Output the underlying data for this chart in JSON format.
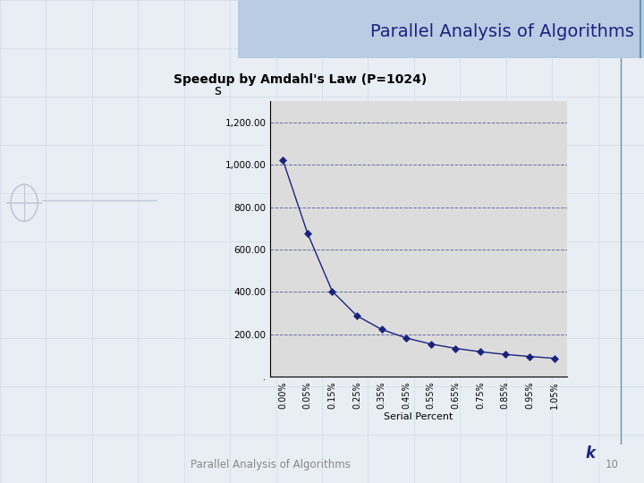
{
  "title_top": "Parallel Analysis of Algorithms",
  "title_bottom": "Parallel Analysis of Algorithms",
  "page_number": "10",
  "chart_title": "Speedup by Amdahl's Law (P=1024)",
  "xlabel": "Serial Percent",
  "ylabel_s": "s",
  "ylabel_k": "k",
  "P": 1024,
  "serial_percents": [
    0.0,
    0.05,
    0.15,
    0.25,
    0.35,
    0.45,
    0.55,
    0.65,
    0.75,
    0.85,
    0.95,
    1.05
  ],
  "x_labels": [
    "0.00%",
    "0.05%",
    "0.15%",
    "0.25%",
    "0.35%",
    "0.45%",
    "0.55%",
    "0.65%",
    "0.75%",
    "0.85%",
    "0.95%",
    "1.05%"
  ],
  "ylim": [
    0,
    1300
  ],
  "yticks": [
    0,
    200,
    400,
    600,
    800,
    1000,
    1200
  ],
  "ytick_labels": [
    ".",
    "200.00",
    "400.00",
    "600.00",
    "800.00",
    "1,000.00",
    "1,200.00"
  ],
  "slide_bg_color": "#e8eef4",
  "chart_area_color": "#dcdcdc",
  "line_color": "#1a237e",
  "marker_color": "#1a237e",
  "grid_color": "#1a237e",
  "title_text_color": "#1a237e",
  "header_blue_color": "#b8cce4",
  "footer_text_color": "#888888",
  "circle_color": "#c0c8d8",
  "font_family": "DejaVu Sans"
}
